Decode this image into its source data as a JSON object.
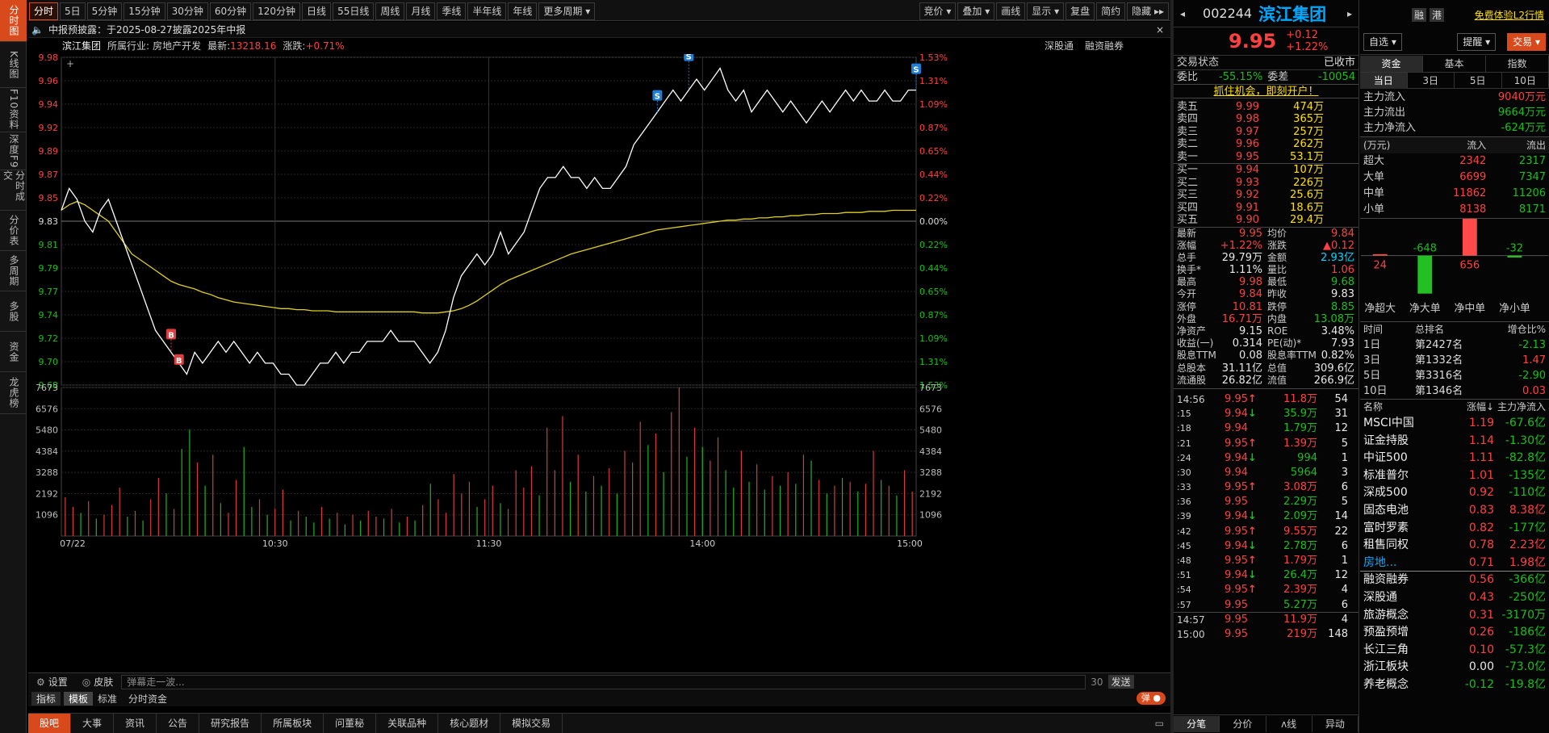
{
  "left_nav": [
    "分时图",
    "K线图",
    "F10资料",
    "深度F9",
    "分时成交",
    "分价表",
    "多周期",
    "多股",
    "资金",
    "龙虎榜"
  ],
  "toolbar": {
    "tabs": [
      "分时",
      "5日",
      "5分钟",
      "15分钟",
      "30分钟",
      "60分钟",
      "120分钟",
      "日线",
      "55日线",
      "周线",
      "月线",
      "季线",
      "半年线",
      "年线",
      "更多周期 ▾"
    ],
    "right": [
      "竞价 ▾",
      "叠加 ▾",
      "画线",
      "显示 ▾",
      "复盘",
      "简约",
      "隐藏 ▸▸"
    ]
  },
  "notice": "中报预披露：于2025-08-27披露2025年中报",
  "chart_header": {
    "name": "滨江集团",
    "industry_label": "所属行业:",
    "industry": "房地产开发",
    "latest_label": "最新:",
    "latest": "13218.16",
    "change_label": "涨跌:",
    "change": "+0.71%",
    "right_links": [
      "深股通",
      "融资融券"
    ]
  },
  "chart_data": {
    "type": "line",
    "price_axis": [
      "9.98",
      "9.96",
      "9.94",
      "9.92",
      "9.89",
      "9.87",
      "9.85",
      "9.83",
      "9.81",
      "9.79",
      "9.77",
      "9.74",
      "9.72",
      "9.70",
      "9.68"
    ],
    "pct_axis": [
      "1.53%",
      "1.31%",
      "1.09%",
      "0.87%",
      "0.65%",
      "0.44%",
      "0.22%",
      "0.00%",
      "0.22%",
      "0.44%",
      "0.65%",
      "0.87%",
      "1.09%",
      "1.31%",
      "1.53%"
    ],
    "vol_axis": [
      "7673",
      "6576",
      "5480",
      "4384",
      "3288",
      "2192",
      "1096"
    ],
    "time_axis": [
      "07/22",
      "10:30",
      "11:30",
      "14:00",
      "15:00"
    ],
    "prev_close": 9.83,
    "price_range": [
      9.68,
      9.98
    ],
    "price_series": [
      9.84,
      9.86,
      9.85,
      9.83,
      9.82,
      9.84,
      9.85,
      9.83,
      9.81,
      9.79,
      9.77,
      9.75,
      9.73,
      9.72,
      9.71,
      9.7,
      9.69,
      9.71,
      9.7,
      9.71,
      9.72,
      9.71,
      9.72,
      9.71,
      9.7,
      9.71,
      9.7,
      9.7,
      9.69,
      9.69,
      9.68,
      9.68,
      9.69,
      9.7,
      9.7,
      9.71,
      9.7,
      9.71,
      9.71,
      9.72,
      9.72,
      9.72,
      9.73,
      9.72,
      9.72,
      9.72,
      9.71,
      9.7,
      9.71,
      9.73,
      9.76,
      9.78,
      9.79,
      9.8,
      9.79,
      9.8,
      9.82,
      9.8,
      9.81,
      9.82,
      9.84,
      9.86,
      9.87,
      9.87,
      9.88,
      9.87,
      9.87,
      9.86,
      9.87,
      9.86,
      9.86,
      9.87,
      9.88,
      9.9,
      9.91,
      9.92,
      9.93,
      9.94,
      9.95,
      9.94,
      9.95,
      9.96,
      9.95,
      9.96,
      9.97,
      9.95,
      9.94,
      9.95,
      9.93,
      9.94,
      9.95,
      9.94,
      9.93,
      9.94,
      9.93,
      9.92,
      9.93,
      9.94,
      9.93,
      9.94,
      9.95,
      9.94,
      9.95,
      9.94,
      9.94,
      9.95,
      9.94,
      9.94,
      9.95,
      9.95
    ],
    "avg_series": [
      9.84,
      9.845,
      9.848,
      9.845,
      9.84,
      9.835,
      9.83,
      9.82,
      9.81,
      9.8,
      9.795,
      9.79,
      9.785,
      9.78,
      9.775,
      9.772,
      9.77,
      9.768,
      9.765,
      9.763,
      9.76,
      9.758,
      9.756,
      9.755,
      9.754,
      9.753,
      9.752,
      9.751,
      9.75,
      9.75,
      9.749,
      9.749,
      9.748,
      9.748,
      9.748,
      9.747,
      9.747,
      9.747,
      9.747,
      9.747,
      9.747,
      9.747,
      9.747,
      9.747,
      9.747,
      9.747,
      9.746,
      9.746,
      9.746,
      9.747,
      9.748,
      9.75,
      9.753,
      9.757,
      9.762,
      9.767,
      9.772,
      9.776,
      9.779,
      9.782,
      9.785,
      9.788,
      9.791,
      9.794,
      9.797,
      9.8,
      9.802,
      9.804,
      9.806,
      9.808,
      9.81,
      9.812,
      9.814,
      9.816,
      9.818,
      9.82,
      9.822,
      9.823,
      9.824,
      9.825,
      9.826,
      9.827,
      9.828,
      9.829,
      9.83,
      9.831,
      9.831,
      9.832,
      9.832,
      9.833,
      9.833,
      9.834,
      9.834,
      9.835,
      9.835,
      9.836,
      9.836,
      9.837,
      9.837,
      9.837,
      9.838,
      9.838,
      9.838,
      9.839,
      9.839,
      9.839,
      9.84,
      9.84,
      9.84,
      9.84
    ],
    "volume_range": [
      0,
      7673
    ],
    "volume_series": [
      2000,
      1500,
      1200,
      1800,
      900,
      1100,
      1600,
      2500,
      1000,
      1300,
      800,
      1900,
      3000,
      2200,
      1400,
      4500,
      5500,
      3800,
      2600,
      4200,
      1700,
      1200,
      2900,
      4600,
      1500,
      1900,
      1100,
      1400,
      2400,
      800,
      1300,
      1000,
      700,
      1500,
      900,
      1200,
      600,
      1100,
      800,
      1300,
      1000,
      900,
      1400,
      700,
      1000,
      800,
      1600,
      2700,
      1900,
      1200,
      3200,
      2200,
      2800,
      1500,
      1900,
      2600,
      1700,
      1400,
      3400,
      2500,
      3600,
      2100,
      5600,
      3400,
      6200,
      2800,
      4200,
      2300,
      3100,
      2600,
      3500,
      2200,
      4400,
      3800,
      5900,
      4700,
      5300,
      3300,
      6400,
      7673,
      4100,
      5600,
      4600,
      3900,
      5100,
      3400,
      2500,
      4400,
      2800,
      3700,
      2400,
      3100,
      2600,
      3300,
      2700,
      4200,
      3900,
      2900,
      2200,
      2600,
      3000,
      2800,
      2300,
      2700,
      4400,
      2900,
      2600,
      2100,
      3400,
      2300
    ],
    "volume_colors": [
      "r",
      "r",
      "g",
      "r",
      "g",
      "r",
      "r",
      "r",
      "g",
      "r",
      "g",
      "r",
      "r",
      "g",
      "r",
      "g",
      "g",
      "r",
      "g",
      "r",
      "g",
      "r",
      "r",
      "g",
      "g",
      "r",
      "g",
      "r",
      "r",
      "g",
      "r",
      "g",
      "g",
      "r",
      "g",
      "r",
      "g",
      "r",
      "g",
      "r",
      "r",
      "g",
      "r",
      "g",
      "r",
      "g",
      "r",
      "g",
      "r",
      "r",
      "r",
      "r",
      "r",
      "g",
      "r",
      "r",
      "g",
      "r",
      "r",
      "r",
      "r",
      "g",
      "r",
      "r",
      "r",
      "g",
      "r",
      "g",
      "r",
      "g",
      "r",
      "g",
      "r",
      "r",
      "r",
      "g",
      "r",
      "g",
      "r",
      "r",
      "g",
      "r",
      "g",
      "r",
      "r",
      "g",
      "g",
      "r",
      "g",
      "r",
      "g",
      "r",
      "g",
      "r",
      "g",
      "r",
      "g",
      "r",
      "g",
      "r",
      "g",
      "r",
      "g",
      "r",
      "r",
      "g",
      "r",
      "g",
      "r",
      "r"
    ],
    "markers": [
      {
        "label": "B",
        "color": "#e23d3d"
      },
      {
        "label": "B",
        "color": "#e23d3d"
      },
      {
        "label": "S",
        "color": "#1f7fd8"
      },
      {
        "label": "S",
        "color": "#1f7fd8"
      },
      {
        "label": "S",
        "color": "#1f7fd8"
      }
    ]
  },
  "bottom": {
    "settings": "设置",
    "skin": "皮肤",
    "danmu_placeholder": "弹幕走一波...",
    "count": "30",
    "send": "发送",
    "toggle": "弹"
  },
  "chart_tabs": [
    "指标",
    "模板",
    "标准",
    "分时资金"
  ],
  "news_tabs": [
    "股吧",
    "大事",
    "资讯",
    "公告",
    "研究报告",
    "所属板块",
    "问董秘",
    "关联品种",
    "核心题材",
    "模拟交易"
  ],
  "quote": {
    "code": "002244",
    "name": "滨江集团",
    "price": "9.95",
    "change": "+0.12",
    "pct": "+1.22%",
    "status_label": "交易状态",
    "status": "已收市",
    "weibi_label": "委比",
    "weibi": "-55.15%",
    "weicha_label": "委差",
    "weicha": "-10054",
    "promo": "抓住机会，即刻开户！"
  },
  "asks": [
    {
      "label": "卖五",
      "price": "9.99",
      "vol": "474万"
    },
    {
      "label": "卖四",
      "price": "9.98",
      "vol": "365万"
    },
    {
      "label": "卖三",
      "price": "9.97",
      "vol": "257万"
    },
    {
      "label": "卖二",
      "price": "9.96",
      "vol": "262万"
    },
    {
      "label": "卖一",
      "price": "9.95",
      "vol": "53.1万"
    }
  ],
  "bids": [
    {
      "label": "买一",
      "price": "9.94",
      "vol": "107万"
    },
    {
      "label": "买二",
      "price": "9.93",
      "vol": "226万"
    },
    {
      "label": "买三",
      "price": "9.92",
      "vol": "25.6万"
    },
    {
      "label": "买四",
      "price": "9.91",
      "vol": "18.6万"
    },
    {
      "label": "买五",
      "price": "9.90",
      "vol": "29.4万"
    }
  ],
  "stats": [
    [
      "最新",
      "9.95",
      "均价",
      "9.84"
    ],
    [
      "涨幅",
      "+1.22%",
      "涨跌",
      "▲0.12"
    ],
    [
      "总手",
      "29.79万",
      "金额",
      "2.93亿"
    ],
    [
      "换手*",
      "1.11%",
      "量比",
      "1.06"
    ],
    [
      "最高",
      "9.98",
      "最低",
      "9.68"
    ],
    [
      "今开",
      "9.84",
      "昨收",
      "9.83"
    ],
    [
      "涨停",
      "10.81",
      "跌停",
      "8.85"
    ],
    [
      "外盘",
      "16.71万",
      "内盘",
      "13.08万"
    ],
    [
      "净资产",
      "9.15",
      "ROE",
      "3.48%"
    ],
    [
      "收益(一)",
      "0.314",
      "PE(动)*",
      "7.93"
    ],
    [
      "股息TTM",
      "0.08",
      "股息率TTM",
      "0.82%"
    ],
    [
      "总股本",
      "31.11亿",
      "总值",
      "309.6亿"
    ],
    [
      "流通股",
      "26.82亿",
      "流值",
      "266.9亿"
    ]
  ],
  "ticks": [
    [
      "14:56",
      "9.95",
      "↑",
      "11.8万",
      "54"
    ],
    [
      ":15",
      "9.94",
      "↓",
      "35.9万",
      "31"
    ],
    [
      ":18",
      "9.94",
      "",
      "1.79万",
      "12"
    ],
    [
      ":21",
      "9.95",
      "↑",
      "1.39万",
      "5"
    ],
    [
      ":24",
      "9.94",
      "↓",
      "994",
      "1"
    ],
    [
      ":30",
      "9.94",
      "",
      "5964",
      "3"
    ],
    [
      ":33",
      "9.95",
      "↑",
      "3.08万",
      "6"
    ],
    [
      ":36",
      "9.95",
      "",
      "2.29万",
      "5"
    ],
    [
      ":39",
      "9.94",
      "↓",
      "2.09万",
      "14"
    ],
    [
      ":42",
      "9.95",
      "↑",
      "9.55万",
      "22"
    ],
    [
      ":45",
      "9.94",
      "↓",
      "2.78万",
      "6"
    ],
    [
      ":48",
      "9.95",
      "↑",
      "1.79万",
      "1"
    ],
    [
      ":51",
      "9.94",
      "↓",
      "26.4万",
      "12"
    ],
    [
      ":54",
      "9.95",
      "↑",
      "2.39万",
      "4"
    ],
    [
      ":57",
      "9.95",
      "",
      "5.27万",
      "6"
    ],
    [
      "14:57",
      "9.95",
      "",
      "11.9万",
      "4"
    ],
    [
      "15:00",
      "9.95",
      "",
      "219万",
      "148"
    ]
  ],
  "rp1_bottom_tabs": [
    "分笔",
    "分价",
    "ʌ线",
    "异动"
  ],
  "rp2": {
    "top_links": [
      "融",
      "港",
      "免费体验L2行情"
    ],
    "buttons": [
      "自选 ▾",
      "提醒 ▾",
      "交易 ▾"
    ],
    "tabs": [
      "资金",
      "基本",
      "指数"
    ],
    "period_tabs": [
      "当日",
      "3日",
      "5日",
      "10日"
    ],
    "main_flow": [
      [
        "主力流入",
        "9040万元"
      ],
      [
        "主力流出",
        "9664万元"
      ],
      [
        "主力净流入",
        "-624万元"
      ]
    ],
    "order_header": [
      "(万元)",
      "流入",
      "流出"
    ],
    "orders": [
      [
        "超大",
        "2342",
        "2317"
      ],
      [
        "大单",
        "6699",
        "7347"
      ],
      [
        "中单",
        "11862",
        "11206"
      ],
      [
        "小单",
        "8138",
        "8171"
      ]
    ],
    "net_bars": {
      "labels": [
        "净超大",
        "净大单",
        "净中单",
        "净小单"
      ],
      "values": [
        24,
        -648,
        656,
        -32
      ]
    },
    "rank_header": [
      "时间",
      "总排名",
      "增仓比%"
    ],
    "ranks": [
      [
        "1日",
        "第2427名",
        "-2.13"
      ],
      [
        "3日",
        "第1332名",
        "1.47"
      ],
      [
        "5日",
        "第3316名",
        "-2.90"
      ],
      [
        "10日",
        "第1346名",
        "0.03"
      ]
    ],
    "sector_header": [
      "名称",
      "涨幅↓",
      "主力净流入"
    ],
    "sectors": [
      [
        "MSCI中国",
        "1.19",
        "-67.6亿"
      ],
      [
        "证金持股",
        "1.14",
        "-1.30亿"
      ],
      [
        "中证500",
        "1.11",
        "-82.8亿"
      ],
      [
        "标准普尔",
        "1.01",
        "-135亿"
      ],
      [
        "深成500",
        "0.92",
        "-110亿"
      ],
      [
        "固态电池",
        "0.83",
        "8.38亿"
      ],
      [
        "富时罗素",
        "0.82",
        "-177亿"
      ],
      [
        "租售同权",
        "0.78",
        "2.23亿"
      ],
      [
        "房地...",
        "0.71",
        "1.98亿"
      ],
      [
        "融资融券",
        "0.56",
        "-366亿"
      ],
      [
        "深股通",
        "0.43",
        "-250亿"
      ],
      [
        "旅游概念",
        "0.31",
        "-3170万"
      ],
      [
        "预盈预增",
        "0.26",
        "-186亿"
      ],
      [
        "长江三角",
        "0.10",
        "-57.3亿"
      ],
      [
        "浙江板块",
        "0.00",
        "-73.0亿"
      ],
      [
        "养老概念",
        "-0.12",
        "-19.8亿"
      ]
    ]
  },
  "colors": {
    "up": "#ff4040",
    "down": "#18c018",
    "accent": "#d84a1b",
    "avg": "#e0d020",
    "price_line": "#ffffff"
  }
}
